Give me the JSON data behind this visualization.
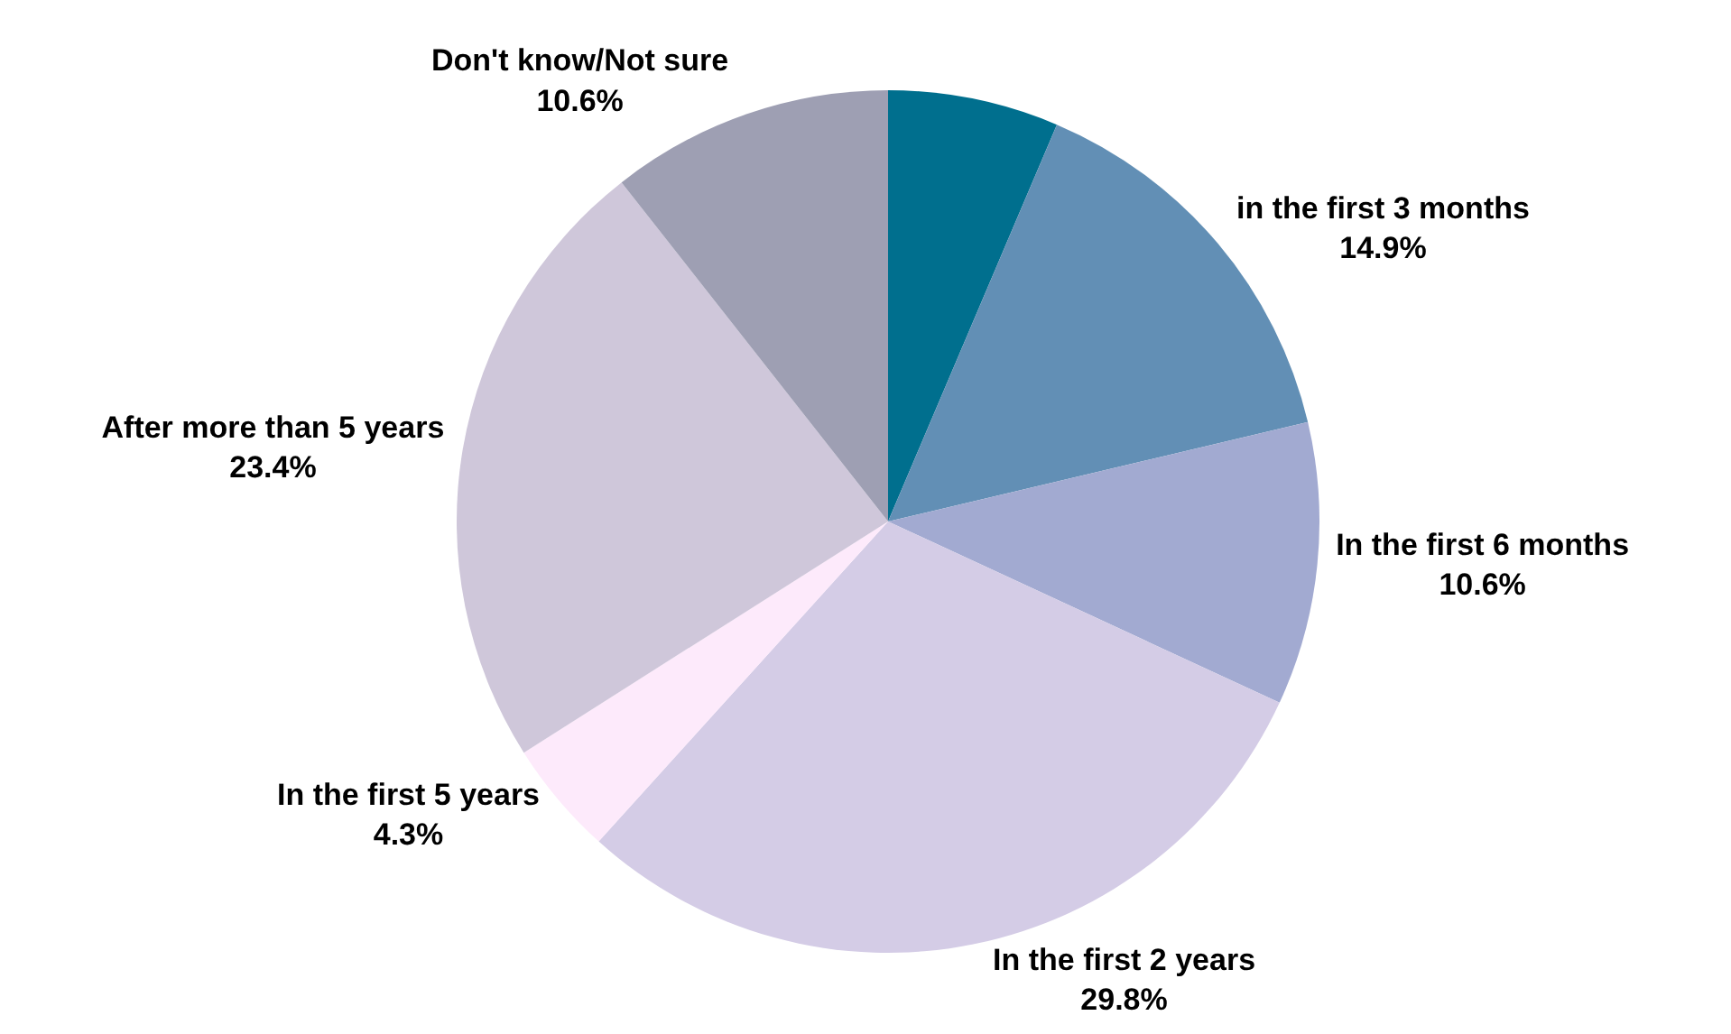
{
  "chart_data": {
    "type": "pie",
    "categories": [
      null,
      "in the first 3 months",
      "In the first 6 months",
      "In the first 2 years",
      "In the first 5 years",
      "After more than 5 years",
      "Don't know/Not sure"
    ],
    "values": [
      6.4,
      14.9,
      10.6,
      29.8,
      4.3,
      23.4,
      10.6
    ],
    "value_labels": [
      null,
      "14.9%",
      "10.6%",
      "29.8%",
      "4.3%",
      "23.4%",
      "10.6%"
    ],
    "colors": [
      "#006f8e",
      "#628fb5",
      "#a2aad1",
      "#d4cce6",
      "#fdeafb",
      "#cfc7da",
      "#9e9fb3"
    ],
    "legend": false
  }
}
